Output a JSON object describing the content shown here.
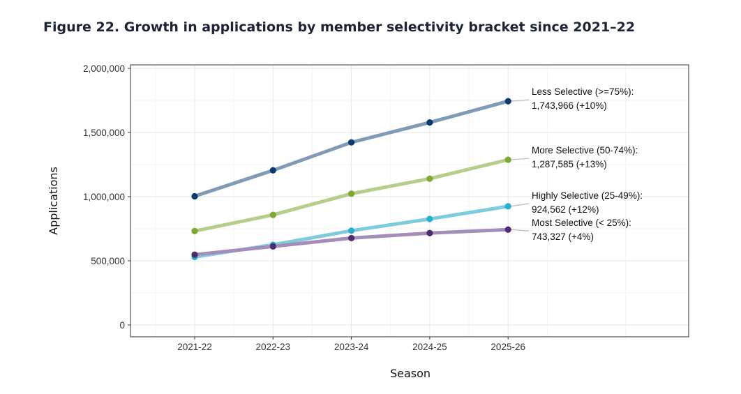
{
  "title": "Figure 22. Growth in applications by member selectivity bracket since 2021–22",
  "chart_data": {
    "type": "line",
    "title": "Figure 22. Growth in applications by member selectivity bracket since 2021–22",
    "xlabel": "Season",
    "ylabel": "Applications",
    "categories": [
      "2021-22",
      "2022-23",
      "2023-24",
      "2024-25",
      "2025-26"
    ],
    "ylim": [
      0,
      2000000
    ],
    "yticks": [
      0,
      500000,
      1000000,
      1500000,
      2000000
    ],
    "ytick_labels": [
      "0",
      "500,000",
      "1,000,000",
      "1,500,000",
      "2,000,000"
    ],
    "grid": true,
    "series": [
      {
        "name": "Less Selective (>=75%)",
        "values": [
          1003000,
          1205000,
          1423000,
          1578000,
          1743966
        ],
        "line_color": "#7f9bb5",
        "point_color": "#0d3a6c",
        "label_line1": "Less Selective (>=75%):",
        "label_line2": "1,743,966 (+10%)"
      },
      {
        "name": "More Selective (50-74%)",
        "values": [
          732000,
          858000,
          1023000,
          1140000,
          1287585
        ],
        "line_color": "#b5cf8b",
        "point_color": "#7ea832",
        "label_line1": "More Selective (50-74%):",
        "label_line2": "1,287,585 (+13%)"
      },
      {
        "name": "Highly Selective (25-49%)",
        "values": [
          530000,
          625000,
          735000,
          826000,
          924562
        ],
        "line_color": "#7ecbdc",
        "point_color": "#2bb0cc",
        "label_line1": "Highly Selective (25-49%):",
        "label_line2": "924,562 (+12%)"
      },
      {
        "name": "Most Selective (< 25%)",
        "values": [
          548000,
          612000,
          677000,
          716000,
          743327
        ],
        "line_color": "#a48dba",
        "point_color": "#4f2a6e",
        "label_line1": "Most Selective (< 25%):",
        "label_line2": "743,327 (+4%)"
      }
    ]
  }
}
